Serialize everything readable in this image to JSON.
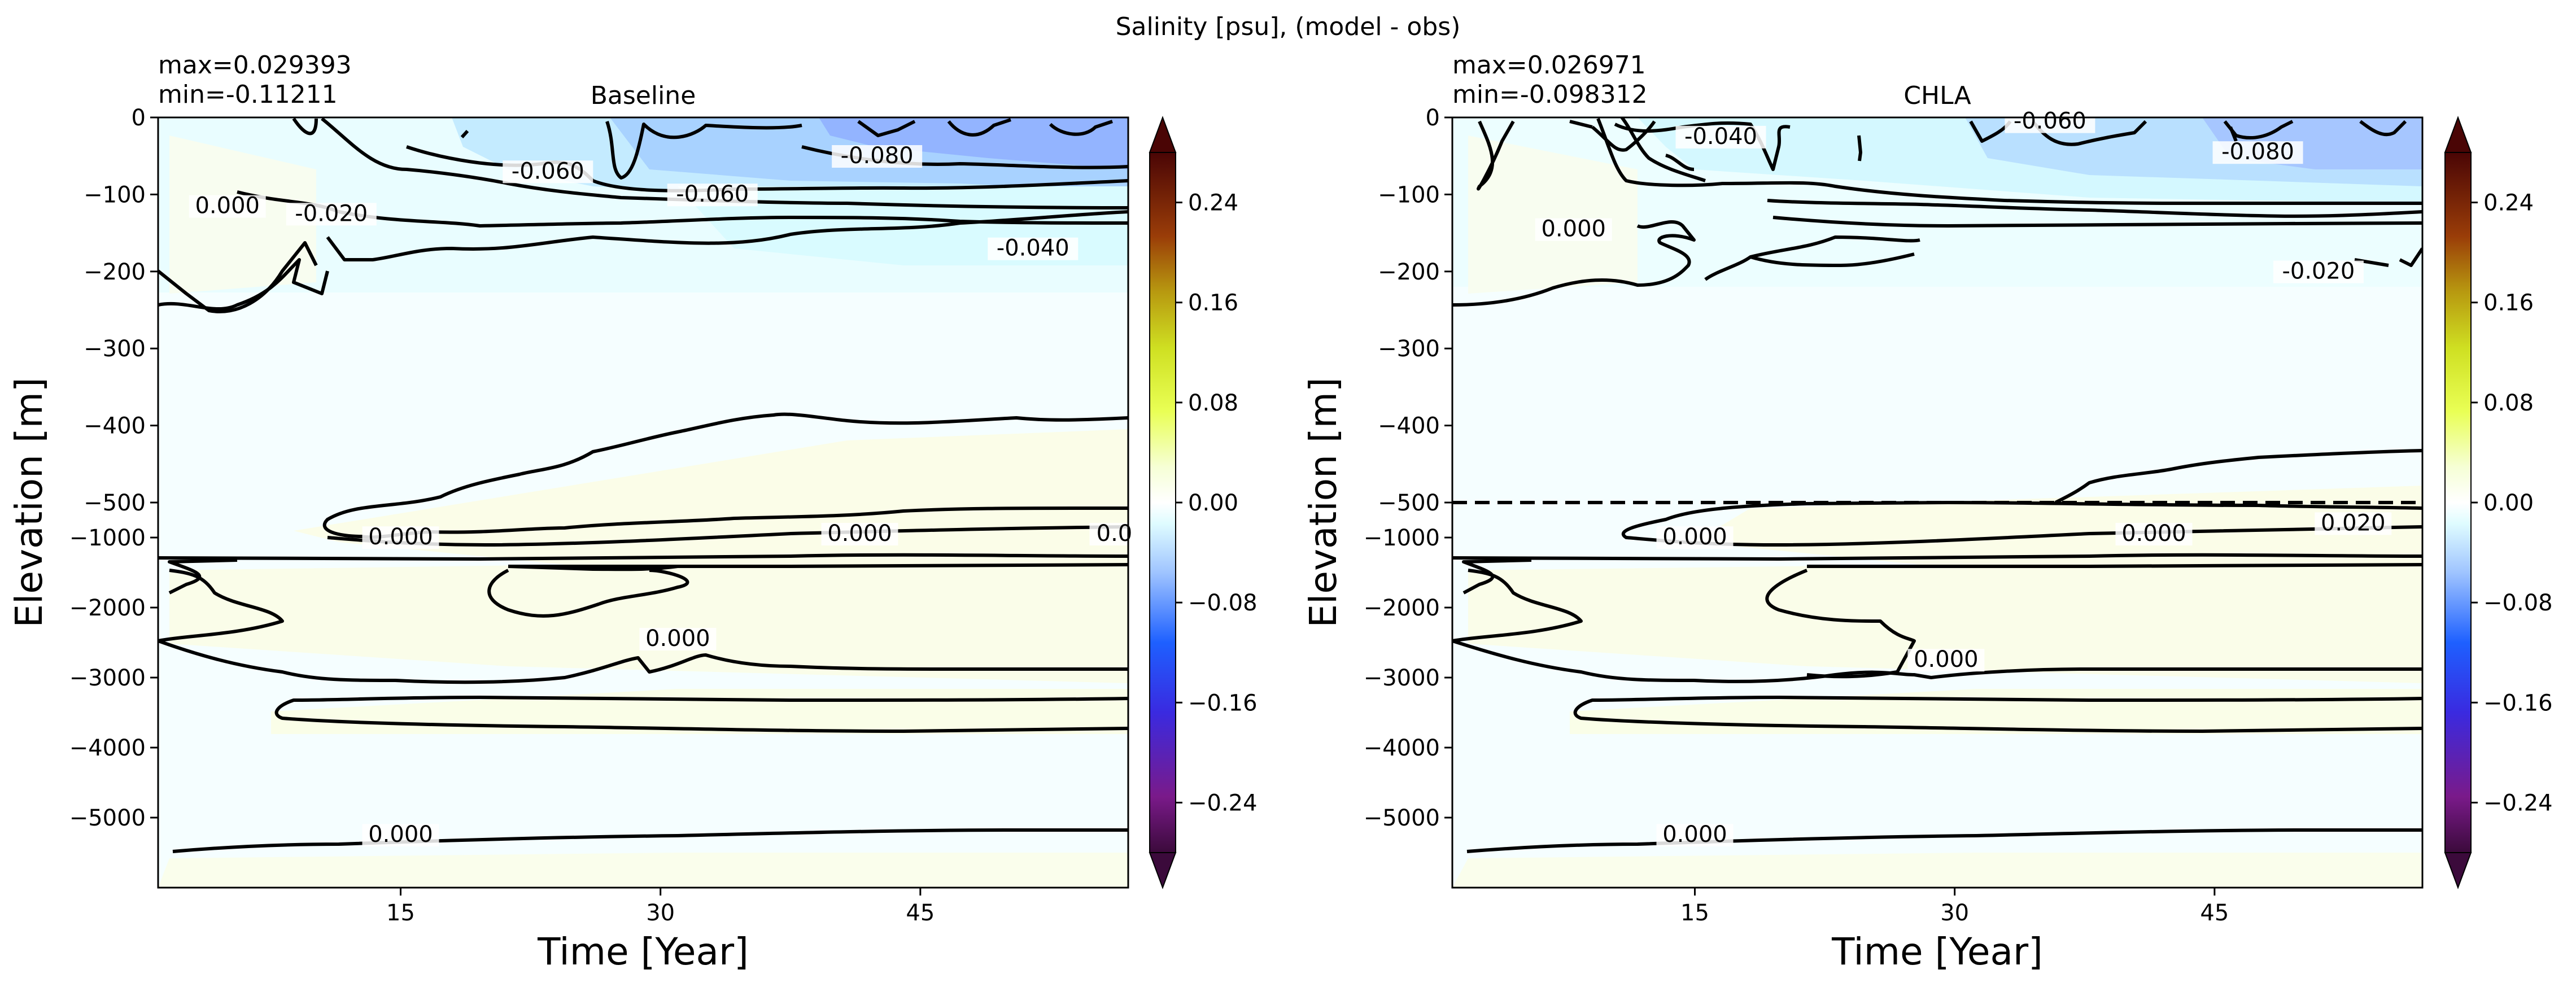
{
  "figure_title": "Salinity [psu], (model - obs)",
  "colors": {
    "contour_line": "#000000",
    "background": "#ffffff",
    "colormap_neg_strong": "#5a0f5a",
    "colormap_neg_mid": "#1e50ff",
    "colormap_neg_light": "#e4ffff",
    "colormap_zero": "#ffffff",
    "colormap_pos_light": "#fbffe6",
    "colormap_pos_mid": "#e6ff10",
    "colormap_pos_strong": "#550808"
  },
  "chart_data": [
    {
      "type": "heatmap",
      "title": "Baseline",
      "stats": {
        "max": "max=0.029393",
        "min": "min=-0.11211"
      },
      "xlabel": "Time [Year]",
      "ylabel": "Elevation [m]",
      "xlim": [
        1,
        57
      ],
      "x_ticks": [
        15,
        30,
        45
      ],
      "x_tick_labels": [
        "15",
        "30",
        "45"
      ],
      "y_axis_split": {
        "upper_range_m": [
          -500,
          0
        ],
        "lower_range_m": [
          -6000,
          -500
        ],
        "split_at_m": -500
      },
      "y_ticks_upper": [
        0,
        -100,
        -200,
        -300,
        -400,
        -500
      ],
      "y_tick_labels_upper": [
        "0",
        "−100",
        "−200",
        "−300",
        "−400",
        "−500"
      ],
      "y_ticks_lower": [
        -1000,
        -2000,
        -3000,
        -4000,
        -5000
      ],
      "y_tick_labels_lower": [
        "−1000",
        "−2000",
        "−3000",
        "−4000",
        "−5000"
      ],
      "split_line": false,
      "contour_labels": [
        {
          "text": "0.000",
          "x": 5.0,
          "y": -120
        },
        {
          "text": "-0.020",
          "x": 11.0,
          "y": -130
        },
        {
          "text": "-0.060",
          "x": 23.5,
          "y": -75
        },
        {
          "text": "-0.060",
          "x": 33.0,
          "y": -105
        },
        {
          "text": "-0.080",
          "x": 42.5,
          "y": -55
        },
        {
          "text": "-0.040",
          "x": 51.5,
          "y": -175
        },
        {
          "text": "0.0",
          "x": 56.2,
          "y": -1000
        },
        {
          "text": "0.000",
          "x": 15.0,
          "y": -1050
        },
        {
          "text": "0.000",
          "x": 41.5,
          "y": -1000
        },
        {
          "text": "0.000",
          "x": 31.0,
          "y": -2500
        },
        {
          "text": "0.000",
          "x": 15.0,
          "y": -5300
        }
      ]
    },
    {
      "type": "heatmap",
      "title": "CHLA",
      "stats": {
        "max": "max=0.026971",
        "min": "min=-0.098312"
      },
      "xlabel": "Time [Year]",
      "ylabel": "Elevation [m]",
      "xlim": [
        1,
        57
      ],
      "x_ticks": [
        15,
        30,
        45
      ],
      "x_tick_labels": [
        "15",
        "30",
        "45"
      ],
      "y_axis_split": {
        "upper_range_m": [
          -500,
          0
        ],
        "lower_range_m": [
          -6000,
          -500
        ],
        "split_at_m": -500
      },
      "y_ticks_upper": [
        0,
        -100,
        -200,
        -300,
        -400,
        -500
      ],
      "y_tick_labels_upper": [
        "0",
        "−100",
        "−200",
        "−300",
        "−400",
        "−500"
      ],
      "y_ticks_lower": [
        -1000,
        -2000,
        -3000,
        -4000,
        -5000
      ],
      "y_tick_labels_lower": [
        "−1000",
        "−2000",
        "−3000",
        "−4000",
        "−5000"
      ],
      "split_line": true,
      "contour_labels": [
        {
          "text": "-0.060",
          "x": 35.5,
          "y": -10
        },
        {
          "text": "-0.040",
          "x": 16.5,
          "y": -30
        },
        {
          "text": "-0.080",
          "x": 47.5,
          "y": -50
        },
        {
          "text": "0.000",
          "x": 8.0,
          "y": -150
        },
        {
          "text": "-0.020",
          "x": 51.0,
          "y": -205
        },
        {
          "text": "0.020",
          "x": 53.0,
          "y": -850
        },
        {
          "text": "0.000",
          "x": 15.0,
          "y": -1050
        },
        {
          "text": "0.000",
          "x": 41.5,
          "y": -1000
        },
        {
          "text": "0.000",
          "x": 29.5,
          "y": -2800
        },
        {
          "text": "0.000",
          "x": 15.0,
          "y": -5300
        }
      ]
    }
  ],
  "colorbar": {
    "range": [
      -0.28,
      0.28
    ],
    "tick_values": [
      -0.24,
      -0.16,
      -0.08,
      0.0,
      0.08,
      0.16,
      0.24
    ],
    "tick_labels": [
      "−0.24",
      "−0.16",
      "−0.08",
      "0.00",
      "0.08",
      "0.16",
      "0.24"
    ],
    "extend": "both"
  }
}
